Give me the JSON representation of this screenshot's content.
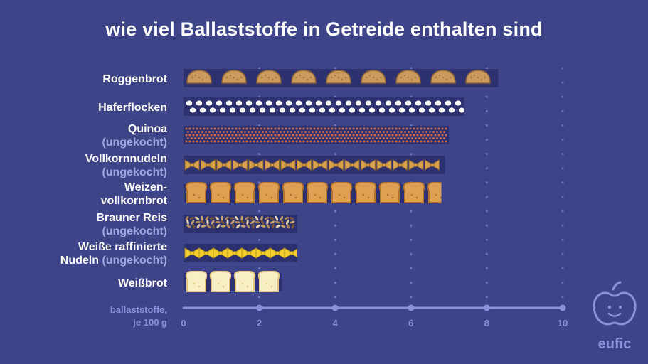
{
  "title": "wie viel Ballaststoffe in Getreide enthalten sind",
  "chart_data": {
    "type": "bar",
    "orientation": "horizontal",
    "categories": [
      {
        "main": "Roggenbrot",
        "main2": "",
        "sub": ""
      },
      {
        "main": "Haferflocken",
        "main2": "",
        "sub": ""
      },
      {
        "main": "Quinoa",
        "main2": "",
        "sub": "(ungekocht)"
      },
      {
        "main": "Vollkornnudeln",
        "main2": "",
        "sub": "(ungekocht)"
      },
      {
        "main": "Weizen-",
        "main2": "vollkornbrot",
        "sub": ""
      },
      {
        "main": "Brauner Reis",
        "main2": "",
        "sub": "(ungekocht)"
      },
      {
        "main": "Weiße raffinierte",
        "main2": "Nudeln",
        "sub": "(ungekocht)"
      },
      {
        "main": "Weißbrot",
        "main2": "",
        "sub": ""
      }
    ],
    "values": [
      8.3,
      7.4,
      7.0,
      6.9,
      6.8,
      3.0,
      3.0,
      2.6
    ],
    "pattern": [
      "rye-slice",
      "oat-flake",
      "quinoa-seed",
      "wholegrain-farfalle",
      "wholegrain-toast",
      "brown-rice-grain",
      "white-farfalle",
      "white-toast"
    ],
    "xlim": [
      0,
      10
    ],
    "xticks": [
      0,
      2,
      4,
      6,
      8,
      10
    ],
    "xlabel_line1": "ballaststoffe,",
    "xlabel_line2": "je 100 g",
    "grid": "dotted-vertical",
    "colors": {
      "background": "#3e4488",
      "bar_bg": "#2e3170",
      "axis": "#8a92dc",
      "rye": "#c99a5c",
      "oat": "#ffffff",
      "quinoa": "#c76a4d",
      "wholegrain_pasta": "#d6a04a",
      "wholegrain_toast": "#dfa054",
      "brown_rice": "#a9865c",
      "white_pasta": "#f3cf2e",
      "white_bread": "#f8efc5"
    }
  },
  "logo": {
    "text": "eufic",
    "icon": "apple-face-icon"
  }
}
